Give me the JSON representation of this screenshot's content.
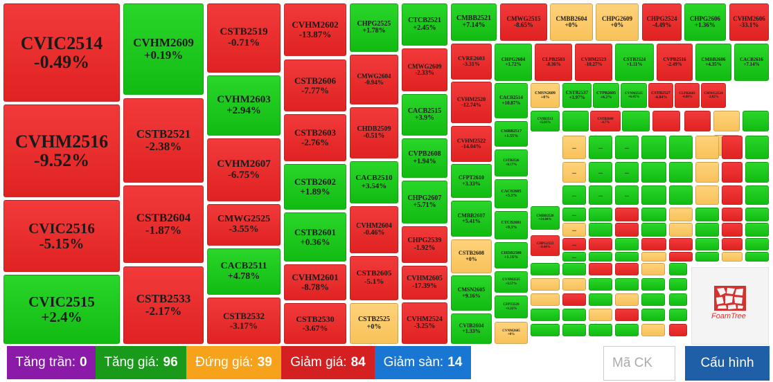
{
  "colors": {
    "up": "#18c018",
    "down": "#e82c2c",
    "ref": "#f9c866",
    "ceiling": "#8b1aa8",
    "floor": "#1976d2",
    "button": "#1f5fa8"
  },
  "tiles": [
    {
      "sym": "CVIC2514",
      "chg": "-0.49%",
      "state": "down"
    },
    {
      "sym": "CVHM2516",
      "chg": "-9.52%",
      "state": "down"
    },
    {
      "sym": "CVIC2516",
      "chg": "-5.15%",
      "state": "down"
    },
    {
      "sym": "CVIC2515",
      "chg": "+2.4%",
      "state": "up"
    },
    {
      "sym": "CVHM2609",
      "chg": "+0.19%",
      "state": "up"
    },
    {
      "sym": "CSTB2521",
      "chg": "-2.38%",
      "state": "down"
    },
    {
      "sym": "CSTB2604",
      "chg": "-1.87%",
      "state": "down"
    },
    {
      "sym": "CSTB2533",
      "chg": "-2.17%",
      "state": "down"
    },
    {
      "sym": "CSTB2519",
      "chg": "-0.71%",
      "state": "down"
    },
    {
      "sym": "CVHM2603",
      "chg": "+2.94%",
      "state": "up"
    },
    {
      "sym": "CVHM2607",
      "chg": "-6.75%",
      "state": "down"
    },
    {
      "sym": "CMWG2525",
      "chg": "-3.55%",
      "state": "down"
    },
    {
      "sym": "CACB2511",
      "chg": "+4.78%",
      "state": "up"
    },
    {
      "sym": "CSTB2532",
      "chg": "-3.17%",
      "state": "down"
    },
    {
      "sym": "CVHM2602",
      "chg": "-13.87%",
      "state": "down"
    },
    {
      "sym": "CSTB2606",
      "chg": "-7.77%",
      "state": "down"
    },
    {
      "sym": "CSTB2603",
      "chg": "-2.76%",
      "state": "down"
    },
    {
      "sym": "CSTB2602",
      "chg": "+1.89%",
      "state": "up"
    },
    {
      "sym": "CSTB2601",
      "chg": "+0.36%",
      "state": "up"
    },
    {
      "sym": "CVHM2601",
      "chg": "-8.78%",
      "state": "down"
    },
    {
      "sym": "CSTB2530",
      "chg": "-3.67%",
      "state": "down"
    },
    {
      "sym": "CHPG2525",
      "chg": "+1.78%",
      "state": "up"
    },
    {
      "sym": "CMWG2604",
      "chg": "-0.94%",
      "state": "down"
    },
    {
      "sym": "CHDB2509",
      "chg": "-0.51%",
      "state": "down"
    },
    {
      "sym": "CACB2510",
      "chg": "+3.54%",
      "state": "up"
    },
    {
      "sym": "CVHM2604",
      "chg": "-0.46%",
      "state": "down"
    },
    {
      "sym": "CSTB2605",
      "chg": "-5.1%",
      "state": "down"
    },
    {
      "sym": "CSTB2525",
      "chg": "+0%",
      "state": "ref"
    },
    {
      "sym": "CTCB2521",
      "chg": "+2.45%",
      "state": "up"
    },
    {
      "sym": "CMWG2609",
      "chg": "-2.33%",
      "state": "down"
    },
    {
      "sym": "CACB2515",
      "chg": "+3.9%",
      "state": "up"
    },
    {
      "sym": "CVPB2608",
      "chg": "+1.94%",
      "state": "up"
    },
    {
      "sym": "CHPG2607",
      "chg": "+5.71%",
      "state": "up"
    },
    {
      "sym": "CHPG2539",
      "chg": "-1.92%",
      "state": "down"
    },
    {
      "sym": "CVHM2605",
      "chg": "-17.39%",
      "state": "down"
    },
    {
      "sym": "CVHM2524",
      "chg": "-3.25%",
      "state": "down"
    },
    {
      "sym": "CMBB2521",
      "chg": "+7.14%",
      "state": "up"
    },
    {
      "sym": "CMWG2515",
      "chg": "-8.65%",
      "state": "down"
    },
    {
      "sym": "CMBB2604",
      "chg": "+0%",
      "state": "ref"
    },
    {
      "sym": "CHPG2609",
      "chg": "+0%",
      "state": "ref"
    },
    {
      "sym": "CHPG2524",
      "chg": "-4.49%",
      "state": "down"
    },
    {
      "sym": "CHPG2606",
      "chg": "+1.36%",
      "state": "up"
    },
    {
      "sym": "CVHM2606",
      "chg": "-33.1%",
      "state": "down"
    },
    {
      "sym": "CVRE2603",
      "chg": "-3.31%",
      "state": "down"
    },
    {
      "sym": "CVHM2520",
      "chg": "-12.74%",
      "state": "down"
    },
    {
      "sym": "CVHM2522",
      "chg": "-14.04%",
      "state": "down"
    },
    {
      "sym": "CFPT2610",
      "chg": "+3.33%",
      "state": "up"
    },
    {
      "sym": "CMBB2607",
      "chg": "+5.41%",
      "state": "up"
    },
    {
      "sym": "CSTB2608",
      "chg": "+0%",
      "state": "ref"
    },
    {
      "sym": "CMSN2605",
      "chg": "+9.16%",
      "state": "up"
    },
    {
      "sym": "CVIB2604",
      "chg": "+1.33%",
      "state": "up"
    },
    {
      "sym": "CHPG2604",
      "chg": "+1.72%",
      "state": "up"
    },
    {
      "sym": "CLPB2503",
      "chg": "-8.36%",
      "state": "down"
    },
    {
      "sym": "CVHM2523",
      "chg": "-10.27%",
      "state": "down"
    },
    {
      "sym": "CSTB2524",
      "chg": "+1.11%",
      "state": "up"
    },
    {
      "sym": "CVPB2516",
      "chg": "-2.49%",
      "state": "down"
    },
    {
      "sym": "CMBB2606",
      "chg": "+4.35%",
      "state": "up"
    },
    {
      "sym": "CACB2616",
      "chg": "+7.14%",
      "state": "up"
    },
    {
      "sym": "CACB2514",
      "chg": "+10.87%",
      "state": "up"
    },
    {
      "sym": "CMSN2609",
      "chg": "+0%",
      "state": "ref"
    },
    {
      "sym": "CSTB2537",
      "chg": "+3.97%",
      "state": "up"
    },
    {
      "sym": "CTPB2605",
      "chg": "+6.2%",
      "state": "up"
    },
    {
      "sym": "CVNM2515",
      "chg": "+6.45%",
      "state": "up"
    },
    {
      "sym": "CSTB2527",
      "chg": "-4.84%",
      "state": "down"
    },
    {
      "sym": "CLPB2603",
      "chg": "-4.88%",
      "state": "down"
    },
    {
      "sym": "CMWG2524",
      "chg": "-2.82%",
      "state": "down"
    },
    {
      "sym": "CMBB2517",
      "chg": "+1.55%",
      "state": "up"
    },
    {
      "sym": "CSTB2526",
      "chg": "+8.17%",
      "state": "up"
    },
    {
      "sym": "CVIB2513",
      "chg": "+5.03%",
      "state": "up"
    },
    {
      "sym": "CSTB2609",
      "chg": "-4.7%",
      "state": "down"
    },
    {
      "sym": "CACB2605",
      "chg": "+5.3%",
      "state": "up"
    },
    {
      "sym": "CTCB2601",
      "chg": "+9.3%",
      "state": "up"
    },
    {
      "sym": "CMBB2528",
      "chg": "+14.04%",
      "state": "up"
    },
    {
      "sym": "CHDB2508",
      "chg": "+1.16%",
      "state": "up"
    },
    {
      "sym": "CHPG2523",
      "chg": "-4.44%",
      "state": "down"
    },
    {
      "sym": "CVNM2525",
      "chg": "+3.57%",
      "state": "up"
    },
    {
      "sym": "CFPT2529",
      "chg": "+1.22%",
      "state": "up"
    },
    {
      "sym": "CVNM2605",
      "chg": "+0%",
      "state": "ref"
    }
  ],
  "small_tiles": [
    {
      "state": "up",
      "label": ""
    },
    {
      "state": "up",
      "label": ""
    },
    {
      "state": "down",
      "label": ""
    },
    {
      "state": "down",
      "label": ""
    },
    {
      "state": "ref",
      "label": ""
    },
    {
      "state": "up",
      "label": ""
    },
    {
      "state": "ref",
      "label": ""
    },
    {
      "state": "ref",
      "label": "..."
    },
    {
      "state": "up",
      "label": "..."
    },
    {
      "state": "up",
      "label": "..."
    },
    {
      "state": "up",
      "label": ""
    },
    {
      "state": "up",
      "label": ""
    },
    {
      "state": "ref",
      "label": ""
    },
    {
      "state": "down",
      "label": ""
    },
    {
      "state": "up",
      "label": ""
    },
    {
      "state": "ref",
      "label": "..."
    },
    {
      "state": "up",
      "label": "..."
    },
    {
      "state": "up",
      "label": "..."
    },
    {
      "state": "up",
      "label": ""
    },
    {
      "state": "up",
      "label": ""
    },
    {
      "state": "ref",
      "label": ""
    },
    {
      "state": "down",
      "label": ""
    },
    {
      "state": "up",
      "label": ""
    },
    {
      "state": "up",
      "label": "..."
    },
    {
      "state": "up",
      "label": "..."
    },
    {
      "state": "up",
      "label": "..."
    },
    {
      "state": "up",
      "label": ""
    },
    {
      "state": "up",
      "label": ""
    },
    {
      "state": "ref",
      "label": ""
    },
    {
      "state": "down",
      "label": ""
    },
    {
      "state": "up",
      "label": ""
    },
    {
      "state": "up",
      "label": "..."
    },
    {
      "state": "up",
      "label": ""
    },
    {
      "state": "down",
      "label": ""
    },
    {
      "state": "up",
      "label": ""
    },
    {
      "state": "ref",
      "label": ""
    },
    {
      "state": "up",
      "label": ""
    },
    {
      "state": "down",
      "label": ""
    },
    {
      "state": "up",
      "label": ""
    },
    {
      "state": "ref",
      "label": "..."
    },
    {
      "state": "up",
      "label": ""
    },
    {
      "state": "down",
      "label": ""
    },
    {
      "state": "up",
      "label": ""
    },
    {
      "state": "ref",
      "label": ""
    },
    {
      "state": "up",
      "label": ""
    },
    {
      "state": "down",
      "label": ""
    },
    {
      "state": "up",
      "label": ""
    },
    {
      "state": "down",
      "label": "..."
    },
    {
      "state": "down",
      "label": ""
    },
    {
      "state": "up",
      "label": ""
    },
    {
      "state": "down",
      "label": ""
    },
    {
      "state": "down",
      "label": ""
    },
    {
      "state": "up",
      "label": ""
    },
    {
      "state": "down",
      "label": ""
    },
    {
      "state": "up",
      "label": ""
    },
    {
      "state": "up",
      "label": "..."
    },
    {
      "state": "up",
      "label": ""
    },
    {
      "state": "up",
      "label": ""
    },
    {
      "state": "ref",
      "label": ""
    },
    {
      "state": "down",
      "label": ""
    },
    {
      "state": "up",
      "label": ""
    },
    {
      "state": "ref",
      "label": ""
    },
    {
      "state": "up",
      "label": ""
    },
    {
      "state": "up",
      "label": "..."
    },
    {
      "state": "up",
      "label": ""
    },
    {
      "state": "up",
      "label": ""
    },
    {
      "state": "up",
      "label": ""
    },
    {
      "state": "down",
      "label": ""
    },
    {
      "state": "ref",
      "label": ""
    },
    {
      "state": "down",
      "label": ""
    },
    {
      "state": "up",
      "label": ""
    },
    {
      "state": "down",
      "label": "..."
    },
    {
      "state": "down",
      "label": ""
    },
    {
      "state": "down",
      "label": ""
    },
    {
      "state": "up",
      "label": ""
    },
    {
      "state": "up",
      "label": ""
    },
    {
      "state": "down",
      "label": ""
    },
    {
      "state": "up",
      "label": ""
    },
    {
      "state": "ref",
      "label": ""
    }
  ],
  "foamtree": {
    "label": "FoamTree"
  },
  "footer": {
    "ceiling": {
      "label": "Tăng trần:",
      "count": "0"
    },
    "up": {
      "label": "Tăng giá:",
      "count": "96"
    },
    "ref": {
      "label": "Đứng giá:",
      "count": "39"
    },
    "down": {
      "label": "Giảm giá:",
      "count": "84"
    },
    "floor": {
      "label": "Giảm sàn:",
      "count": "14"
    },
    "search_placeholder": "Mã CK",
    "config_label": "Cấu hình"
  }
}
